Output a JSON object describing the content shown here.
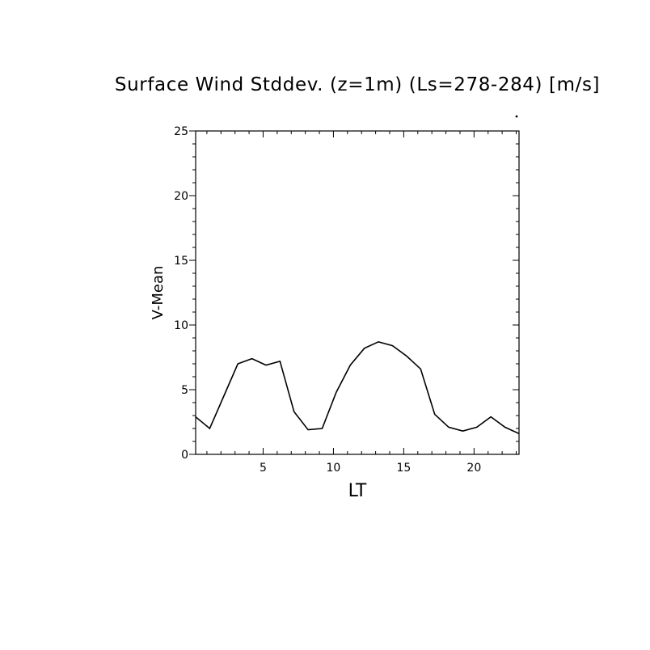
{
  "chart_data": {
    "type": "line",
    "title": "Surface Wind Stddev. (z=1m) (Ls=278-284) [m/s]",
    "xlabel": "LT",
    "ylabel": "V-Mean",
    "xlim": [
      0.2,
      23.2
    ],
    "ylim": [
      0,
      25
    ],
    "x_ticks": [
      5,
      10,
      15,
      20
    ],
    "y_ticks": [
      0,
      5,
      10,
      15,
      20,
      25
    ],
    "grid": false,
    "series": [
      {
        "color": "#000000",
        "x": [
          0.2,
          1.2,
          2.2,
          3.2,
          4.2,
          5.2,
          6.2,
          7.2,
          8.2,
          9.2,
          10.2,
          11.2,
          12.2,
          13.2,
          14.2,
          15.2,
          16.2,
          17.2,
          18.2,
          19.2,
          20.2,
          21.2,
          22.2,
          23.2
        ],
        "y": [
          2.9,
          2.0,
          4.5,
          7.0,
          7.4,
          6.9,
          7.2,
          3.3,
          1.9,
          2.0,
          4.8,
          6.9,
          8.2,
          8.7,
          8.4,
          7.6,
          6.6,
          3.1,
          2.1,
          1.8,
          2.1,
          2.9,
          2.1,
          1.6
        ]
      }
    ]
  }
}
